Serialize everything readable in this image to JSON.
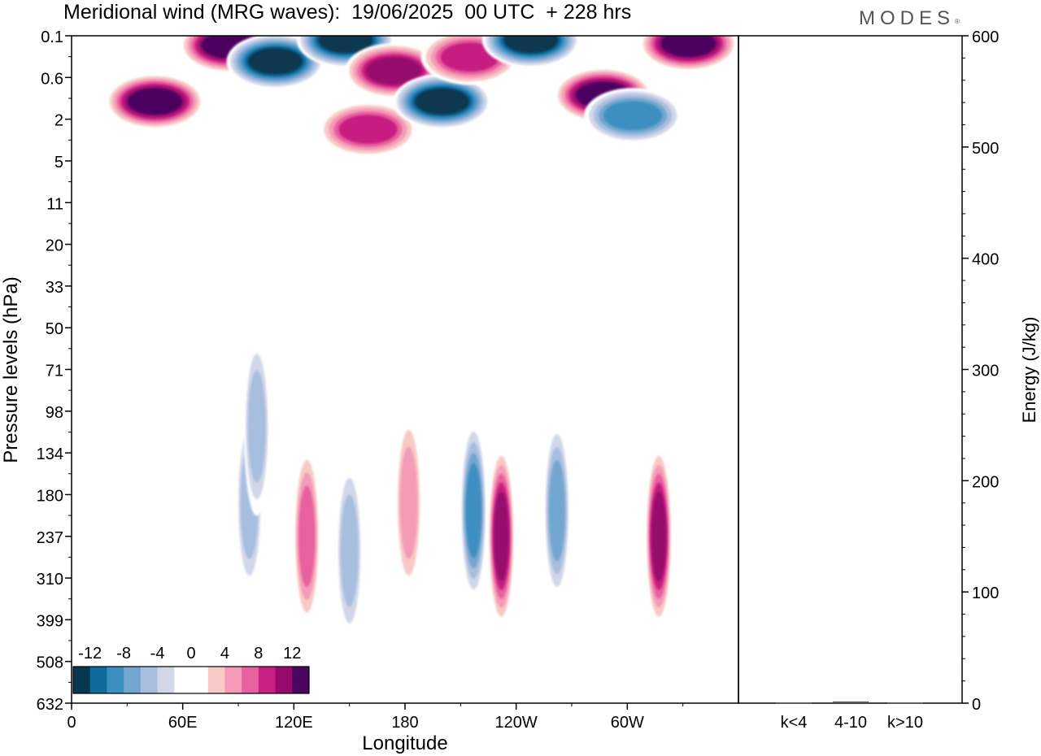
{
  "header": {
    "title": "Meridional wind (MRG waves):  19/06/2025  00 UTC  + 228 hrs",
    "logo": "MODES"
  },
  "chart_data": [
    {
      "type": "heatmap",
      "title": "Meridional wind (MRG waves):  19/06/2025  00 UTC  + 228 hrs",
      "xlabel": "Longitude",
      "ylabel": "Pressure levels (hPa)",
      "x_ticks": [
        "0",
        "60E",
        "120E",
        "180",
        "120W",
        "60W"
      ],
      "y_ticks": [
        "0.1",
        "0.6",
        "2",
        "5",
        "11",
        "20",
        "33",
        "50",
        "71",
        "98",
        "134",
        "180",
        "237",
        "310",
        "399",
        "508",
        "632"
      ],
      "colorbar": {
        "ticks": [
          "-12",
          "-8",
          "-4",
          "0",
          "4",
          "8",
          "12"
        ],
        "colors": [
          "#07384f",
          "#0f6b9c",
          "#3d8fc1",
          "#73a6cf",
          "#a7bedf",
          "#d2d6e9",
          "#ffffff",
          "#ffffff",
          "#f8c9c6",
          "#f49bb8",
          "#e8619f",
          "#c71f82",
          "#960a6d",
          "#4c0560"
        ]
      },
      "features": [
        {
          "lon": 45,
          "p": 1.2,
          "value": 14
        },
        {
          "lon": 85,
          "p": 0.15,
          "value": 14
        },
        {
          "lon": 110,
          "p": 0.3,
          "value": -14
        },
        {
          "lon": 148,
          "p": 0.12,
          "value": -14
        },
        {
          "lon": 160,
          "p": 2.5,
          "value": 10
        },
        {
          "lon": 174,
          "p": 0.45,
          "value": 12
        },
        {
          "lon": 200,
          "p": 1.2,
          "value": -14
        },
        {
          "lon": 215,
          "p": 0.25,
          "value": 10
        },
        {
          "lon": 248,
          "p": 0.12,
          "value": -14
        },
        {
          "lon": 287,
          "p": 1.0,
          "value": 14
        },
        {
          "lon": 303,
          "p": 1.8,
          "value": -10
        },
        {
          "lon": 333,
          "p": 0.14,
          "value": 14
        },
        {
          "lon": 127,
          "p": 237,
          "value": 8
        },
        {
          "lon": 150,
          "p": 260,
          "value": -6
        },
        {
          "lon": 182,
          "p": 190,
          "value": 6
        },
        {
          "lon": 217,
          "p": 200,
          "value": -9
        },
        {
          "lon": 232,
          "p": 237,
          "value": 12
        },
        {
          "lon": 262,
          "p": 200,
          "value": -8
        },
        {
          "lon": 317,
          "p": 237,
          "value": 12
        },
        {
          "lon": 96,
          "p": 190,
          "value": -6
        },
        {
          "lon": 100,
          "p": 110,
          "value": -5
        }
      ]
    },
    {
      "type": "bar",
      "ylabel": "Energy (J/kg)",
      "categories": [
        "k<4",
        "4-10",
        "k>10"
      ],
      "values": [
        0.5,
        1.5,
        0.5
      ],
      "ylim": [
        0,
        600
      ],
      "y_ticks": [
        "0",
        "100",
        "200",
        "300",
        "400",
        "500",
        "600"
      ]
    }
  ]
}
